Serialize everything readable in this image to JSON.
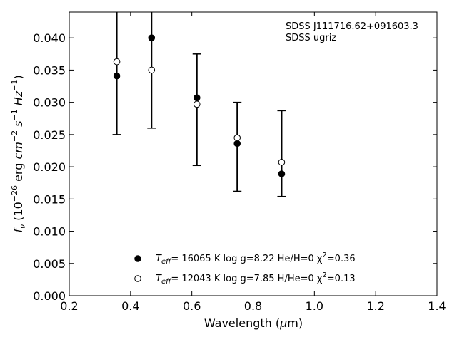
{
  "chart_data": {
    "type": "scatter",
    "xlabel": "Wavelength (μm)",
    "ylabel": "f_ν (10^-26 erg cm^-2 s^-1 Hz^-1)",
    "xlim": [
      0.2,
      1.4
    ],
    "ylim": [
      0.0,
      0.044
    ],
    "x_ticks": [
      0.2,
      0.4,
      0.6,
      0.8,
      1.0,
      1.2,
      1.4
    ],
    "x_tick_labels": [
      "0.2",
      "0.4",
      "0.6",
      "0.8",
      "1.0",
      "1.2",
      "1.4"
    ],
    "y_ticks": [
      0.0,
      0.005,
      0.01,
      0.015,
      0.02,
      0.025,
      0.03,
      0.035,
      0.04
    ],
    "y_tick_labels": [
      "0.000",
      "0.005",
      "0.010",
      "0.015",
      "0.020",
      "0.025",
      "0.030",
      "0.035",
      "0.040"
    ],
    "grid": false,
    "annotations": [
      "SDSS J111716.62+091603.3",
      "SDSS ugriz"
    ],
    "errorbars": {
      "x": [
        0.3551,
        0.4686,
        0.6165,
        0.7481,
        0.8931
      ],
      "low": [
        0.025,
        0.026,
        0.0202,
        0.0162,
        0.0154
      ],
      "high": [
        0.044,
        0.044,
        0.0375,
        0.03,
        0.0287
      ]
    },
    "series": [
      {
        "name": "T_eff= 16065 K  log g=8.22  He/H=0  χ²=0.36",
        "marker": "filled",
        "x": [
          0.3551,
          0.4686,
          0.6165,
          0.7481,
          0.8931
        ],
        "y": [
          0.0341,
          0.04,
          0.0307,
          0.0236,
          0.0189
        ]
      },
      {
        "name": "T_eff= 12043 K  log g=7.85  H/He=0  χ²=0.13",
        "marker": "open",
        "x": [
          0.3551,
          0.4686,
          0.6165,
          0.7481,
          0.8931
        ],
        "y": [
          0.0363,
          0.035,
          0.0297,
          0.0245,
          0.0207
        ]
      }
    ],
    "legend": {
      "placement": "bottom-center",
      "entries": [
        {
          "prefix": "T",
          "sub": "eff",
          "mid": "= 16065 K  log g=8.22  He/H=0  χ",
          "sup": "2",
          "suffix": "=0.36"
        },
        {
          "prefix": "T",
          "sub": "eff",
          "mid": "= 12043 K  log g=7.85  H/He=0  χ",
          "sup": "2",
          "suffix": "=0.13"
        }
      ]
    },
    "ylabel_parts": {
      "f": "f",
      "nu": "ν",
      "open": " (10",
      "exp1": "−26",
      "erg": " erg ",
      "cm": "cm",
      "exp2": "−2",
      "s": " s",
      "exp3": "−1",
      "hz": " Hz",
      "exp4": "−1",
      "close": ")"
    },
    "xlabel_parts": {
      "main": "Wavelength (",
      "mu": "μ",
      "end": "m)"
    }
  }
}
